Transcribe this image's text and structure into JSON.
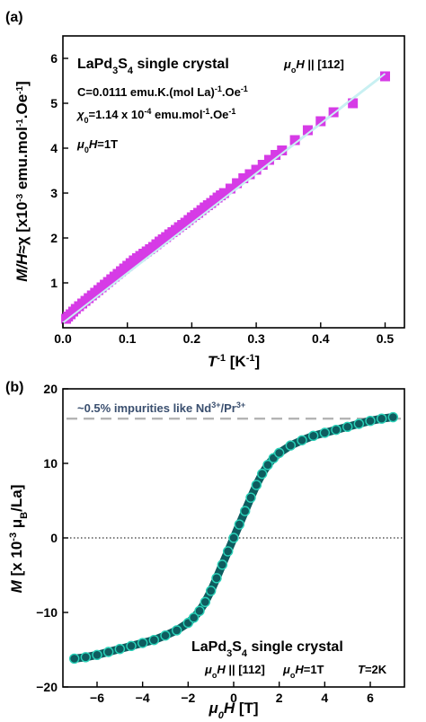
{
  "chart_data": [
    {
      "type": "scatter",
      "panel_label": "(a)",
      "title": "LaPd3S4 single crystal",
      "title_parts": {
        "pre": "LaPd",
        "sub1": "3",
        "mid": "S",
        "sub2": "4",
        "post": " single crystal"
      },
      "orientation": {
        "mu": "μ",
        "o": "o",
        "h": "H",
        "rest": " || [112]"
      },
      "annotations": {
        "curie": {
          "pre": "C=0.0111 emu.K.(mol La)",
          "sup": "-1",
          "post": ".Oe",
          "sup2": "-1"
        },
        "chi0": {
          "sym": "χ",
          "sub": "0",
          "pre": "=1.14 x 10",
          "sup": "-4",
          "post": " emu.mol",
          "sup2": "-1",
          "post2": ".Oe",
          "sup3": "-1"
        },
        "field": {
          "mu": "μ",
          "sub": "0",
          "h": "H",
          "post": "=1T"
        }
      },
      "xlabel": {
        "t": "T",
        "sup": "-1",
        "post": " [K",
        "sup2": "-1",
        "post2": "]"
      },
      "ylabel": {
        "m": "M/H",
        "mid": "≈χ [x10",
        "sup": "-3",
        "post": " emu.mol",
        "sup2": "-1",
        "post2": ".Oe",
        "sup3": "-1",
        "post3": "]"
      },
      "xlim": [
        0.0,
        0.53
      ],
      "ylim": [
        0,
        6.5
      ],
      "xticks": [
        "0.0",
        "0.1",
        "0.2",
        "0.3",
        "0.4",
        "0.5"
      ],
      "yticks": [
        "1",
        "2",
        "3",
        "4",
        "5",
        "6"
      ],
      "marker_color": "#d63be6",
      "fit_color": "#c8f0f2",
      "series": [
        {
          "x": [
            0.005,
            0.008,
            0.012,
            0.016,
            0.02,
            0.025,
            0.03,
            0.035,
            0.04,
            0.045,
            0.05,
            0.055,
            0.06,
            0.065,
            0.07,
            0.075,
            0.08,
            0.085,
            0.09,
            0.095,
            0.1,
            0.105,
            0.11,
            0.115,
            0.12,
            0.125,
            0.13,
            0.135,
            0.14,
            0.145,
            0.15,
            0.155,
            0.16,
            0.165,
            0.17,
            0.175,
            0.18,
            0.185,
            0.19,
            0.195,
            0.2,
            0.205,
            0.21,
            0.215,
            0.22,
            0.225,
            0.23,
            0.235,
            0.24,
            0.245,
            0.25,
            0.26,
            0.27,
            0.28,
            0.29,
            0.3,
            0.31,
            0.32,
            0.33,
            0.34,
            0.36,
            0.38,
            0.4,
            0.42,
            0.45,
            0.5
          ],
          "y": [
            0.2,
            0.25,
            0.3,
            0.36,
            0.42,
            0.48,
            0.54,
            0.6,
            0.66,
            0.72,
            0.78,
            0.84,
            0.9,
            0.96,
            1.02,
            1.08,
            1.14,
            1.2,
            1.26,
            1.32,
            1.38,
            1.44,
            1.5,
            1.55,
            1.6,
            1.65,
            1.7,
            1.75,
            1.8,
            1.86,
            1.92,
            1.97,
            2.02,
            2.08,
            2.13,
            2.18,
            2.24,
            2.29,
            2.34,
            2.4,
            2.46,
            2.51,
            2.56,
            2.62,
            2.68,
            2.73,
            2.78,
            2.84,
            2.9,
            2.95,
            3.0,
            3.1,
            3.22,
            3.33,
            3.42,
            3.52,
            3.63,
            3.74,
            3.85,
            3.95,
            4.18,
            4.4,
            4.6,
            4.8,
            5.0,
            5.6
          ]
        }
      ],
      "fit": {
        "x": [
          0.0,
          0.5
        ],
        "y": [
          0.11,
          5.66
        ]
      }
    },
    {
      "type": "scatter",
      "panel_label": "(b)",
      "title": "LaPd3S4 single crystal",
      "title_parts": {
        "pre": "LaPd",
        "sub1": "3",
        "mid": "S",
        "sub2": "4",
        "post": " single crystal"
      },
      "conditions": {
        "orientation": {
          "mu": "μ",
          "o": "o",
          "h": "H",
          "rest": " || [112]"
        },
        "field": {
          "mu": "μ",
          "o": "o",
          "h": "H",
          "rest": "=1T"
        },
        "temperature": {
          "t": "T",
          "rest": "=2K"
        }
      },
      "impurity_line": {
        "pre": "~0.5% impurities like Nd",
        "sup": "3+",
        "mid": "/Pr",
        "sup2": "3+",
        "y": 16
      },
      "xlabel": {
        "mu": "μ",
        "sub": "0",
        "h": "H",
        "post": " [T]"
      },
      "ylabel": {
        "m": "M",
        "pre": " [x 10",
        "sup": "-3",
        "mid": " μ",
        "sub": "B",
        "post": "/La]"
      },
      "xlim": [
        -7.5,
        7.5
      ],
      "ylim": [
        -20,
        20
      ],
      "xticks": [
        "−6",
        "−4",
        "−2",
        "0",
        "2",
        "4",
        "6"
      ],
      "yticks": [
        "20",
        "10",
        "0",
        "−10",
        "−20"
      ],
      "marker_color": "#0e5c5f",
      "marker_edge": "#2ad1b8",
      "series": [
        {
          "x": [
            -7.0,
            -6.5,
            -6.0,
            -5.5,
            -5.0,
            -4.5,
            -4.0,
            -3.5,
            -3.0,
            -2.5,
            -2.0,
            -1.75,
            -1.5,
            -1.25,
            -1.0,
            -0.75,
            -0.5,
            -0.25,
            0.0,
            0.25,
            0.5,
            0.75,
            1.0,
            1.25,
            1.5,
            1.75,
            2.0,
            2.5,
            3.0,
            3.5,
            4.0,
            4.5,
            5.0,
            5.5,
            6.0,
            6.5,
            7.0
          ],
          "y": [
            -16.2,
            -16.0,
            -15.7,
            -15.3,
            -14.9,
            -14.5,
            -14.1,
            -13.7,
            -13.1,
            -12.4,
            -11.4,
            -10.7,
            -9.8,
            -8.6,
            -7.1,
            -5.4,
            -3.6,
            -1.8,
            0.0,
            1.8,
            3.6,
            5.4,
            7.1,
            8.6,
            9.8,
            10.7,
            11.4,
            12.4,
            13.1,
            13.7,
            14.1,
            14.5,
            14.9,
            15.3,
            15.7,
            16.0,
            16.2
          ]
        }
      ]
    }
  ]
}
